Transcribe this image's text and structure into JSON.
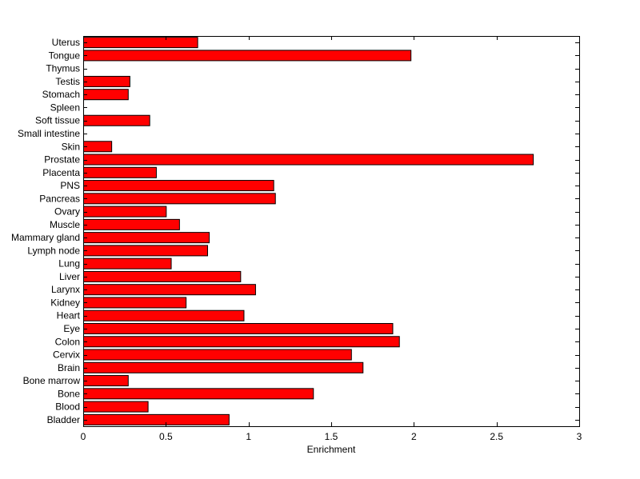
{
  "chart_data": {
    "type": "bar",
    "orientation": "horizontal",
    "title": "",
    "xlabel": "Enrichment",
    "ylabel": "",
    "xlim": [
      0,
      3
    ],
    "xticks": [
      0,
      0.5,
      1,
      1.5,
      2,
      2.5,
      3
    ],
    "xtick_labels": [
      "0",
      "0.5",
      "1",
      "1.5",
      "2",
      "2.5",
      "3"
    ],
    "grid": false,
    "legend": "none",
    "bar_color": "#ff0000",
    "bar_edge_color": "#000000",
    "categories": [
      "Bladder",
      "Blood",
      "Bone",
      "Bone marrow",
      "Brain",
      "Cervix",
      "Colon",
      "Eye",
      "Heart",
      "Kidney",
      "Larynx",
      "Liver",
      "Lung",
      "Lymph node",
      "Mammary gland",
      "Muscle",
      "Ovary",
      "Pancreas",
      "PNS",
      "Placenta",
      "Prostate",
      "Skin",
      "Small intestine",
      "Soft tissue",
      "Spleen",
      "Stomach",
      "Testis",
      "Thymus",
      "Tongue",
      "Uterus"
    ],
    "values": [
      0.88,
      0.39,
      1.39,
      0.27,
      1.69,
      1.62,
      1.91,
      1.87,
      0.97,
      0.62,
      1.04,
      0.95,
      0.53,
      0.75,
      0.76,
      0.58,
      0.5,
      1.16,
      1.15,
      0.44,
      2.72,
      0.17,
      0.0,
      0.4,
      0.0,
      0.27,
      0.28,
      0.0,
      1.98,
      0.69
    ]
  }
}
